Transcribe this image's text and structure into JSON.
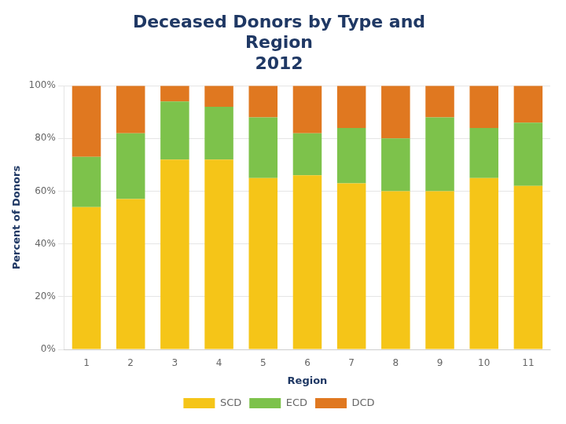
{
  "chart_data": {
    "type": "bar",
    "title": [
      "Deceased Donors by Type and",
      "Region",
      "2012"
    ],
    "x_label": "Region",
    "y_label": "Percent of Donors",
    "categories": [
      "1",
      "2",
      "3",
      "4",
      "5",
      "6",
      "7",
      "8",
      "9",
      "10",
      "11"
    ],
    "series": [
      {
        "name": "SCD",
        "color": "#F5C518",
        "values": [
          0.54,
          0.57,
          0.72,
          0.72,
          0.65,
          0.66,
          0.63,
          0.6,
          0.6,
          0.65,
          0.62
        ]
      },
      {
        "name": "ECD",
        "color": "#7DC24B",
        "values": [
          0.19,
          0.25,
          0.22,
          0.2,
          0.23,
          0.16,
          0.21,
          0.2,
          0.28,
          0.19,
          0.24
        ]
      },
      {
        "name": "DCD",
        "color": "#E07820",
        "values": [
          0.27,
          0.18,
          0.06,
          0.08,
          0.12,
          0.18,
          0.16,
          0.2,
          0.12,
          0.16,
          0.14
        ]
      }
    ],
    "stacked": true,
    "ylim": [
      0,
      1.0
    ],
    "yticks": [
      {
        "value": 0.0,
        "label": "0%"
      },
      {
        "value": 0.2,
        "label": "20%"
      },
      {
        "value": 0.4,
        "label": "40%"
      },
      {
        "value": 0.6,
        "label": "60%"
      },
      {
        "value": 0.8,
        "label": "80%"
      },
      {
        "value": 1.0,
        "label": "100%"
      }
    ],
    "grid": true,
    "legend": "bottom"
  }
}
